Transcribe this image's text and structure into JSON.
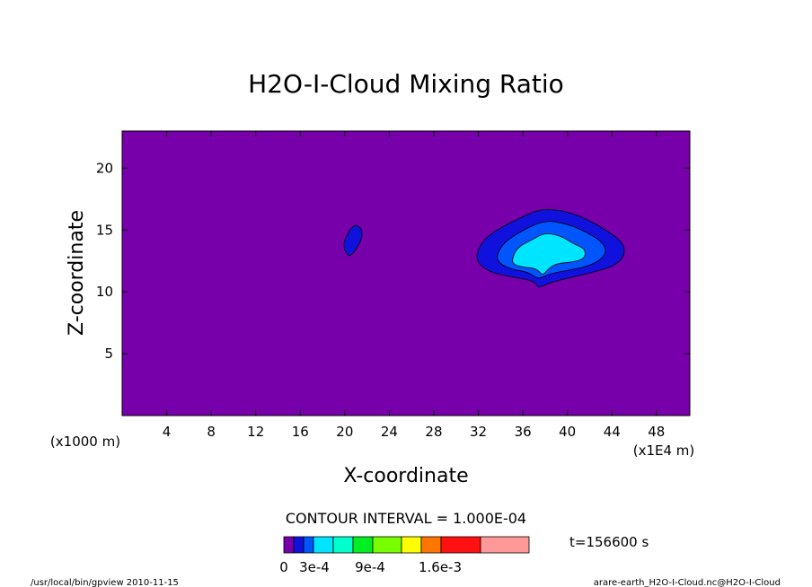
{
  "chart_data": {
    "type": "contour",
    "title": "H2O-I-Cloud Mixing Ratio",
    "xlabel": "X-coordinate",
    "ylabel": "Z-coordinate",
    "x_unit_note": "(x1E4 m)",
    "y_unit_note": "(x1000 m)",
    "xlim": [
      0,
      51
    ],
    "ylim": [
      0,
      23
    ],
    "x_ticks": [
      4,
      8,
      12,
      16,
      20,
      24,
      28,
      32,
      36,
      40,
      44,
      48
    ],
    "y_ticks": [
      5,
      10,
      15,
      20
    ],
    "contour_interval_text": "CONTOUR INTERVAL = 1.000E-04",
    "time_text": "t=156600 s",
    "background_level_color": "#7700aa",
    "colorbar": {
      "colors": [
        "#7700aa",
        "#1111dd",
        "#0055ff",
        "#00e5ff",
        "#00ffcc",
        "#00ee22",
        "#77ff00",
        "#ffff00",
        "#ff7700",
        "#ff1111",
        "#ff9999"
      ],
      "label_0": "0",
      "label_1": "3e-4",
      "label_2": "9e-4",
      "label_3": "1.6e-3"
    },
    "regions": [
      {
        "name": "small-cloud",
        "color": "#1111dd",
        "points": [
          [
            20.2,
            13.0
          ],
          [
            19.8,
            13.8
          ],
          [
            20.4,
            15.0
          ],
          [
            21.0,
            15.5
          ],
          [
            21.6,
            15.0
          ],
          [
            21.5,
            14.2
          ],
          [
            21.0,
            13.4
          ],
          [
            20.5,
            12.9
          ]
        ]
      },
      {
        "name": "main-cloud-level-1",
        "color": "#1111dd",
        "points": [
          [
            31.8,
            13.0
          ],
          [
            32.4,
            14.2
          ],
          [
            34.0,
            15.2
          ],
          [
            35.8,
            16.0
          ],
          [
            37.5,
            16.7
          ],
          [
            39.5,
            16.6
          ],
          [
            41.5,
            16.0
          ],
          [
            43.5,
            15.0
          ],
          [
            45.0,
            14.0
          ],
          [
            45.2,
            13.0
          ],
          [
            44.3,
            12.1
          ],
          [
            42.0,
            11.5
          ],
          [
            39.5,
            11.0
          ],
          [
            38.0,
            10.6
          ],
          [
            37.4,
            10.3
          ],
          [
            37.0,
            10.9
          ],
          [
            35.0,
            11.2
          ],
          [
            33.0,
            11.6
          ],
          [
            32.0,
            12.3
          ]
        ]
      },
      {
        "name": "main-cloud-level-2",
        "color": "#0055ff",
        "points": [
          [
            33.6,
            12.9
          ],
          [
            34.3,
            14.0
          ],
          [
            36.0,
            15.0
          ],
          [
            38.0,
            15.8
          ],
          [
            40.0,
            15.5
          ],
          [
            41.8,
            14.8
          ],
          [
            43.3,
            13.9
          ],
          [
            43.5,
            13.0
          ],
          [
            42.3,
            12.2
          ],
          [
            40.5,
            11.8
          ],
          [
            38.5,
            11.5
          ],
          [
            37.4,
            11.0
          ],
          [
            36.5,
            11.6
          ],
          [
            35.0,
            11.8
          ],
          [
            33.9,
            12.3
          ]
        ]
      },
      {
        "name": "main-cloud-level-3",
        "color": "#00e5ff",
        "points": [
          [
            35.0,
            12.6
          ],
          [
            35.5,
            13.6
          ],
          [
            36.8,
            14.2
          ],
          [
            38.0,
            14.8
          ],
          [
            39.5,
            14.5
          ],
          [
            40.5,
            13.9
          ],
          [
            41.6,
            13.5
          ],
          [
            41.6,
            12.7
          ],
          [
            40.5,
            12.4
          ],
          [
            39.0,
            12.3
          ],
          [
            38.2,
            11.8
          ],
          [
            37.8,
            11.3
          ],
          [
            37.2,
            11.9
          ],
          [
            36.0,
            12.0
          ],
          [
            35.2,
            12.2
          ]
        ]
      }
    ]
  },
  "footer": {
    "left": "/usr/local/bin/gpview  2010-11-15",
    "right": "arare-earth_H2O-I-Cloud.nc@H2O-I-Cloud"
  }
}
